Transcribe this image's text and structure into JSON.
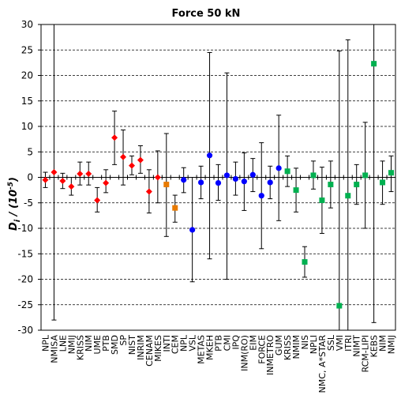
{
  "chart_data": {
    "type": "scatter",
    "title": "Force 50 kN",
    "ylabel_main": "D",
    "ylabel_sub": "i",
    "ylabel_rest": " / (10",
    "ylabel_exp": "-5",
    "ylabel_close": ")",
    "ylim": [
      -30,
      30
    ],
    "yticks": [
      -30,
      -25,
      -20,
      -15,
      -10,
      -5,
      0,
      5,
      10,
      15,
      20,
      25,
      30
    ],
    "grid": "horizontal dashed",
    "colors": {
      "red": "#ff0000",
      "orange": "#e87a00",
      "blue": "#0000ff",
      "green": "#00b050"
    },
    "points": [
      {
        "label": "NPL",
        "y": -0.5,
        "lo": -2.0,
        "hi": 1.0,
        "color": "red"
      },
      {
        "label": "NMISA",
        "y": 1.0,
        "lo": -28.0,
        "hi": 30.0,
        "color": "red"
      },
      {
        "label": "LNE",
        "y": -0.7,
        "lo": -2.2,
        "hi": 0.8,
        "color": "red"
      },
      {
        "label": "NMIJ",
        "y": -1.8,
        "lo": -3.5,
        "hi": 0.0,
        "color": "red"
      },
      {
        "label": "KRISS",
        "y": 0.7,
        "lo": -1.5,
        "hi": 3.0,
        "color": "red"
      },
      {
        "label": "NIM",
        "y": 0.7,
        "lo": -1.5,
        "hi": 3.0,
        "color": "red"
      },
      {
        "label": "UME",
        "y": -4.5,
        "lo": -6.8,
        "hi": -2.0,
        "color": "red"
      },
      {
        "label": "PTB",
        "y": -1.1,
        "lo": -3.0,
        "hi": 1.5,
        "color": "red"
      },
      {
        "label": "SMD",
        "y": 7.8,
        "lo": 2.5,
        "hi": 13.0,
        "color": "red"
      },
      {
        "label": "SP",
        "y": 4.0,
        "lo": -1.5,
        "hi": 9.3,
        "color": "red"
      },
      {
        "label": "NIST",
        "y": 2.3,
        "lo": 0.5,
        "hi": 4.2,
        "color": "red"
      },
      {
        "label": "INRIM",
        "y": 3.4,
        "lo": 0.8,
        "hi": 6.2,
        "color": "red"
      },
      {
        "label": "CENAM",
        "y": -2.8,
        "lo": -7.0,
        "hi": 1.5,
        "color": "red"
      },
      {
        "label": "MIKES",
        "y": 0.0,
        "lo": -5.0,
        "hi": 5.2,
        "color": "red"
      },
      {
        "label": "INTI",
        "y": -1.4,
        "lo": -11.6,
        "hi": 8.6,
        "color": "orange"
      },
      {
        "label": "CEM",
        "y": -6.0,
        "lo": -8.8,
        "hi": -3.5,
        "color": "orange"
      },
      {
        "label": "NPL",
        "y": -0.5,
        "lo": -3.0,
        "hi": 1.9,
        "color": "blue"
      },
      {
        "label": "VSL",
        "y": -10.3,
        "lo": -20.5,
        "hi": 0.0,
        "color": "blue"
      },
      {
        "label": "METAS",
        "y": -1.0,
        "lo": -4.2,
        "hi": 2.2,
        "color": "blue"
      },
      {
        "label": "MKEH",
        "y": 4.3,
        "lo": -16.0,
        "hi": 24.5,
        "color": "blue"
      },
      {
        "label": "PTB",
        "y": -1.1,
        "lo": -4.5,
        "hi": 2.5,
        "color": "blue"
      },
      {
        "label": "CMI",
        "y": 0.4,
        "lo": -20.0,
        "hi": 20.5,
        "color": "blue"
      },
      {
        "label": "IPQ",
        "y": -0.3,
        "lo": -3.5,
        "hi": 3.0,
        "color": "blue"
      },
      {
        "label": "INM(RO)",
        "y": -0.8,
        "lo": -6.5,
        "hi": 4.8,
        "color": "blue"
      },
      {
        "label": "EIM",
        "y": 0.5,
        "lo": -2.8,
        "hi": 3.7,
        "color": "blue"
      },
      {
        "label": "FORCE",
        "y": -3.6,
        "lo": -14.0,
        "hi": 6.8,
        "color": "blue"
      },
      {
        "label": "INMETRO",
        "y": -1.0,
        "lo": -4.2,
        "hi": 2.2,
        "color": "blue"
      },
      {
        "label": "GUM",
        "y": 1.8,
        "lo": -8.5,
        "hi": 12.2,
        "color": "blue"
      },
      {
        "label": "KRISS",
        "y": 1.2,
        "lo": -1.8,
        "hi": 4.2,
        "color": "green"
      },
      {
        "label": "NMIM",
        "y": -2.5,
        "lo": -6.8,
        "hi": 1.8,
        "color": "green"
      },
      {
        "label": "NIS",
        "y": -16.6,
        "lo": -19.6,
        "hi": -13.6,
        "color": "green"
      },
      {
        "label": "NPLI",
        "y": 0.4,
        "lo": -2.3,
        "hi": 3.2,
        "color": "green"
      },
      {
        "label": "NMC, A*STAR",
        "y": -4.5,
        "lo": -11.0,
        "hi": 2.0,
        "color": "green"
      },
      {
        "label": "SSL",
        "y": -1.4,
        "lo": -6.0,
        "hi": 3.2,
        "color": "green"
      },
      {
        "label": "VMI",
        "y": -25.2,
        "lo": -30.0,
        "hi": 24.8,
        "color": "green"
      },
      {
        "label": "ITRI",
        "y": -3.6,
        "lo": -30.0,
        "hi": 27.0,
        "color": "green"
      },
      {
        "label": "NIMT",
        "y": -1.4,
        "lo": -5.3,
        "hi": 2.5,
        "color": "green"
      },
      {
        "label": "RCM-LIPI",
        "y": 0.4,
        "lo": -10.0,
        "hi": 10.8,
        "color": "green"
      },
      {
        "label": "KEBS",
        "y": 22.3,
        "lo": -28.5,
        "hi": 30.0,
        "color": "green"
      },
      {
        "label": "NIM",
        "y": -1.0,
        "lo": -5.3,
        "hi": 3.2,
        "color": "green"
      },
      {
        "label": "NMIJ",
        "y": 0.9,
        "lo": -2.8,
        "hi": 4.2,
        "color": "green"
      }
    ]
  }
}
